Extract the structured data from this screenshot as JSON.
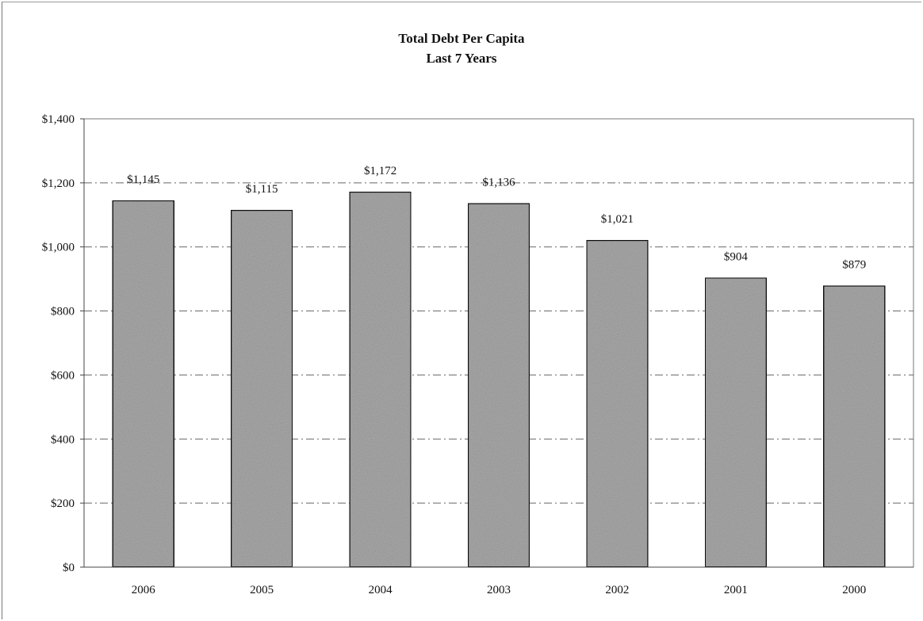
{
  "chart_data": {
    "type": "bar",
    "title": "Total Debt Per Capita",
    "subtitle": "Last 7 Years",
    "categories": [
      "2006",
      "2005",
      "2004",
      "2003",
      "2002",
      "2001",
      "2000"
    ],
    "values": [
      1145,
      1115,
      1172,
      1136,
      1021,
      904,
      879
    ],
    "data_labels": [
      "$1,145",
      "$1,115",
      "$1,172",
      "$1,136",
      "$1,021",
      "$904",
      "$879"
    ],
    "ylim": [
      0,
      1400
    ],
    "yticks": [
      0,
      200,
      400,
      600,
      800,
      1000,
      1200,
      1400
    ],
    "ytick_labels": [
      "$0",
      "$200",
      "$400",
      "$600",
      "$800",
      "$1,000",
      "$1,200",
      "$1,400"
    ],
    "xlabel": "",
    "ylabel": "",
    "grid": true,
    "legend": false,
    "bar_color": "#a9a9a9"
  }
}
